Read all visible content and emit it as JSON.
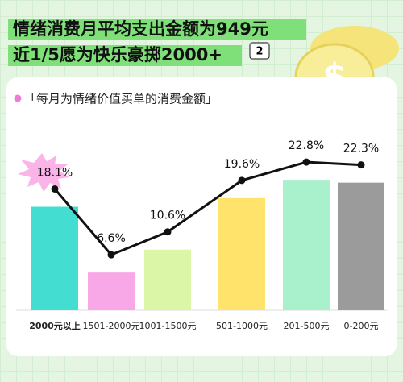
{
  "title": "情绪消费月平均支出金额为949元",
  "subtitle": "近1/5愿为快乐豪掷2000+",
  "badge": "2",
  "chart_data": {
    "type": "bar-line",
    "title": "「每月为情绪价值买单的消费金额」",
    "categories": [
      "2000元以上",
      "1501-2000元",
      "1001-1500元",
      "501-1000元",
      "201-500元",
      "0-200元"
    ],
    "values": [
      18.1,
      6.6,
      10.6,
      19.6,
      22.8,
      22.3
    ],
    "value_labels": [
      "18.1%",
      "6.6%",
      "10.6%",
      "19.6%",
      "22.8%",
      "22.3%"
    ],
    "colors": [
      "#44ddd2",
      "#f8a8e6",
      "#dcf6a8",
      "#ffe36a",
      "#a9f1cc",
      "#9b9b9b"
    ],
    "line_color": "#111111"
  }
}
